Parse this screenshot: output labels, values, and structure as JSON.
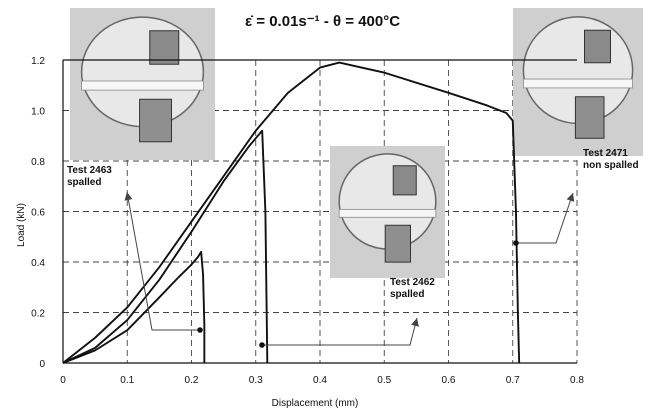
{
  "chart_data": {
    "type": "line",
    "title": "ε̇ = 0.01s⁻¹ - θ = 400°C",
    "xlabel": "Displacement (mm)",
    "ylabel": "Load (kN)",
    "xlim": [
      0,
      0.8
    ],
    "ylim": [
      0,
      1.2
    ],
    "xticks": [
      0,
      0.1,
      0.2,
      0.3,
      0.4,
      0.5,
      0.6,
      0.7,
      0.8
    ],
    "xtick_labels": [
      "0",
      "0.1",
      "0.2",
      "0.3",
      "0.4",
      "0.5",
      "0.6",
      "0.7",
      "0.8"
    ],
    "yticks": [
      0,
      0.2,
      0.4,
      0.6,
      0.8,
      1.0,
      1.2
    ],
    "ytick_labels": [
      "0",
      "0.2",
      "0.4",
      "0.6",
      "0.8",
      "1.0",
      "1.2"
    ],
    "grid": "dashed",
    "series": [
      {
        "x": [
          0,
          0.05,
          0.1,
          0.15,
          0.18,
          0.2,
          0.21,
          0.215,
          0.218,
          0.22,
          0.22
        ],
        "y": [
          0,
          0.05,
          0.13,
          0.26,
          0.34,
          0.39,
          0.42,
          0.44,
          0.35,
          0.15,
          0
        ]
      },
      {
        "x": [
          0,
          0.05,
          0.1,
          0.15,
          0.2,
          0.25,
          0.29,
          0.31,
          0.315,
          0.317,
          0.318
        ],
        "y": [
          0,
          0.06,
          0.17,
          0.33,
          0.52,
          0.72,
          0.86,
          0.92,
          0.6,
          0.2,
          0
        ]
      },
      {
        "x": [
          0,
          0.05,
          0.1,
          0.15,
          0.2,
          0.25,
          0.3,
          0.35,
          0.4,
          0.43,
          0.5,
          0.6,
          0.66,
          0.69,
          0.7,
          0.705,
          0.708,
          0.71
        ],
        "y": [
          0,
          0.1,
          0.22,
          0.38,
          0.56,
          0.74,
          0.92,
          1.07,
          1.17,
          1.19,
          1.15,
          1.07,
          1.02,
          0.99,
          0.96,
          0.6,
          0.2,
          0
        ]
      }
    ],
    "annotations": [
      {
        "lines": [
          "Test 2463",
          "spalled"
        ]
      },
      {
        "lines": [
          "Test 2462",
          "spalled"
        ]
      },
      {
        "lines": [
          "Test 2471",
          "non spalled"
        ]
      }
    ]
  }
}
